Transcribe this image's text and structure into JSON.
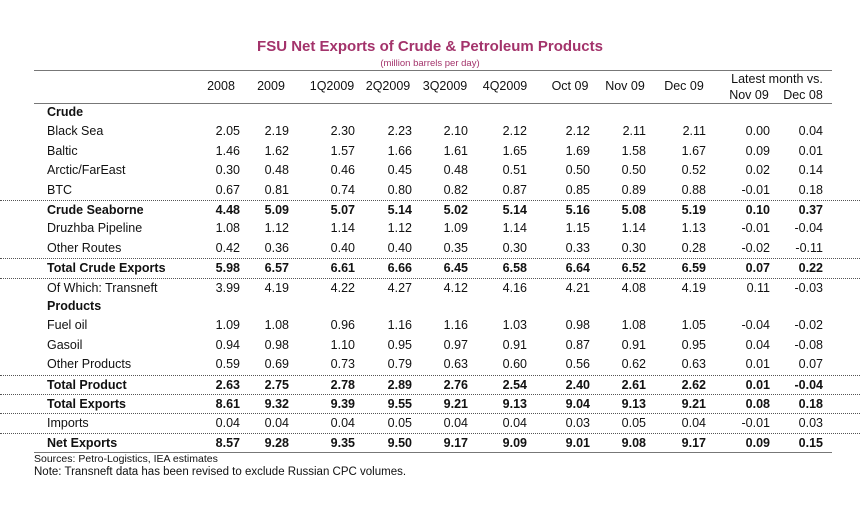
{
  "title": "FSU Net Exports of Crude & Petroleum Products",
  "subtitle": "(million barrels per day)",
  "columns": [
    "2008",
    "2009",
    "1Q2009",
    "2Q2009",
    "3Q2009",
    "4Q2009",
    "Oct 09",
    "Nov 09",
    "Dec 09"
  ],
  "latest_header": "Latest month vs.",
  "latest_columns": [
    "Nov 09",
    "Dec 08"
  ],
  "rows": [
    {
      "label": "Crude",
      "type": "section",
      "values": []
    },
    {
      "label": "Black Sea",
      "type": "data",
      "values": [
        "2.05",
        "2.19",
        "2.30",
        "2.23",
        "2.10",
        "2.12",
        "2.12",
        "2.11",
        "2.11",
        "0.00",
        "0.04"
      ]
    },
    {
      "label": "Baltic",
      "type": "data",
      "values": [
        "1.46",
        "1.62",
        "1.57",
        "1.66",
        "1.61",
        "1.65",
        "1.69",
        "1.58",
        "1.67",
        "0.09",
        "0.01"
      ]
    },
    {
      "label": "Arctic/FarEast",
      "type": "data",
      "values": [
        "0.30",
        "0.48",
        "0.46",
        "0.45",
        "0.48",
        "0.51",
        "0.50",
        "0.50",
        "0.52",
        "0.02",
        "0.14"
      ]
    },
    {
      "label": "BTC",
      "type": "data",
      "values": [
        "0.67",
        "0.81",
        "0.74",
        "0.80",
        "0.82",
        "0.87",
        "0.85",
        "0.89",
        "0.88",
        "-0.01",
        "0.18"
      ]
    },
    {
      "label": "Crude Seaborne",
      "type": "total",
      "values": [
        "4.48",
        "5.09",
        "5.07",
        "5.14",
        "5.02",
        "5.14",
        "5.16",
        "5.08",
        "5.19",
        "0.10",
        "0.37"
      ]
    },
    {
      "label": "Druzhba Pipeline",
      "type": "data",
      "values": [
        "1.08",
        "1.12",
        "1.14",
        "1.12",
        "1.09",
        "1.14",
        "1.15",
        "1.14",
        "1.13",
        "-0.01",
        "-0.04"
      ]
    },
    {
      "label": "Other Routes",
      "type": "data",
      "values": [
        "0.42",
        "0.36",
        "0.40",
        "0.40",
        "0.35",
        "0.30",
        "0.33",
        "0.30",
        "0.28",
        "-0.02",
        "-0.11"
      ]
    },
    {
      "label": "Total Crude Exports",
      "type": "total",
      "values": [
        "5.98",
        "6.57",
        "6.61",
        "6.66",
        "6.45",
        "6.58",
        "6.64",
        "6.52",
        "6.59",
        "0.07",
        "0.22"
      ]
    },
    {
      "label": "Of Which: Transneft",
      "type": "data-dotted",
      "values": [
        "3.99",
        "4.19",
        "4.22",
        "4.27",
        "4.12",
        "4.16",
        "4.21",
        "4.08",
        "4.19",
        "0.11",
        "-0.03"
      ]
    },
    {
      "label": "Products",
      "type": "section",
      "values": []
    },
    {
      "label": "Fuel oil",
      "type": "data",
      "values": [
        "1.09",
        "1.08",
        "0.96",
        "1.16",
        "1.16",
        "1.03",
        "0.98",
        "1.08",
        "1.05",
        "-0.04",
        "-0.02"
      ]
    },
    {
      "label": "Gasoil",
      "type": "data",
      "values": [
        "0.94",
        "0.98",
        "1.10",
        "0.95",
        "0.97",
        "0.91",
        "0.87",
        "0.91",
        "0.95",
        "0.04",
        "-0.08"
      ]
    },
    {
      "label": "Other Products",
      "type": "data",
      "values": [
        "0.59",
        "0.69",
        "0.73",
        "0.79",
        "0.63",
        "0.60",
        "0.56",
        "0.62",
        "0.63",
        "0.01",
        "0.07"
      ]
    },
    {
      "label": "Total Product",
      "type": "total",
      "values": [
        "2.63",
        "2.75",
        "2.78",
        "2.89",
        "2.76",
        "2.54",
        "2.40",
        "2.61",
        "2.62",
        "0.01",
        "-0.04"
      ]
    },
    {
      "label": "Total Exports",
      "type": "total",
      "values": [
        "8.61",
        "9.32",
        "9.39",
        "9.55",
        "9.21",
        "9.13",
        "9.04",
        "9.13",
        "9.21",
        "0.08",
        "0.18"
      ]
    },
    {
      "label": "Imports",
      "type": "data-dotted",
      "values": [
        "0.04",
        "0.04",
        "0.04",
        "0.05",
        "0.04",
        "0.04",
        "0.03",
        "0.05",
        "0.04",
        "-0.01",
        "0.03"
      ]
    },
    {
      "label": "Net Exports",
      "type": "total",
      "values": [
        "8.57",
        "9.28",
        "9.35",
        "9.50",
        "9.17",
        "9.09",
        "9.01",
        "9.08",
        "9.17",
        "0.09",
        "0.15"
      ]
    }
  ],
  "sources": "Sources: Petro-Logistics, IEA estimates",
  "note": "Note: Transneft data has been revised to exclude Russian CPC volumes."
}
